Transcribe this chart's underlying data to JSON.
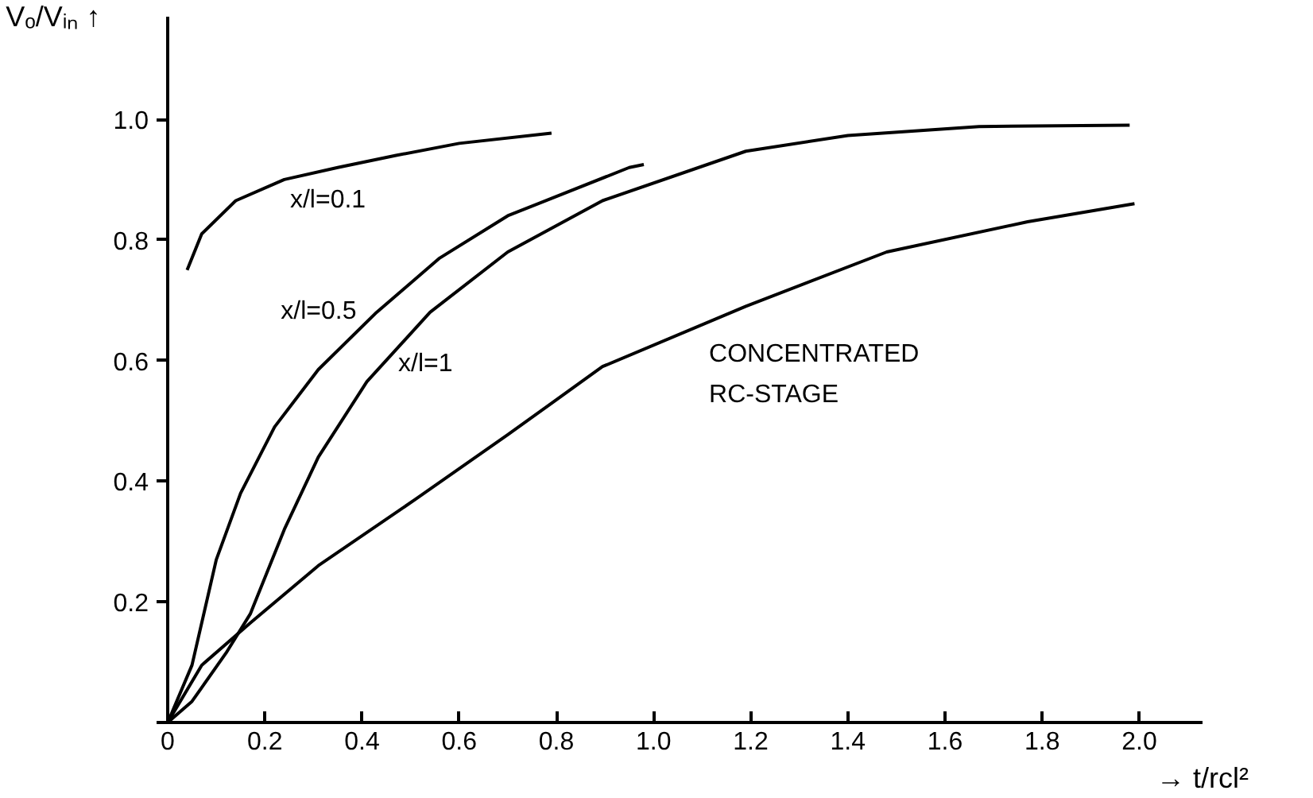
{
  "chart_data": {
    "type": "line",
    "xlabel": "→ t/rcl²",
    "ylabel": "Vₒ/Vᵢₙ ↑",
    "xlim": [
      0,
      2.13
    ],
    "ylim": [
      0,
      1.17
    ],
    "xticks": [
      0,
      0.2,
      0.4,
      0.6,
      0.8,
      {
        "value": 1.0,
        "label": "1.0"
      },
      1.2,
      1.4,
      1.6,
      1.8,
      {
        "value": 2.0,
        "label": "2.0"
      }
    ],
    "yticks": [
      {
        "value": 0,
        "label": null
      },
      0.2,
      0.4,
      0.6,
      0.8,
      {
        "value": 1.0,
        "label": "1.0"
      }
    ],
    "grid": false,
    "marker": "none",
    "line_style": "solid",
    "series": [
      {
        "name": "x/l=0.1",
        "color": "#000000",
        "x": [
          0.04,
          0.07,
          0.14,
          0.24,
          0.35,
          0.47,
          0.6,
          0.79
        ],
        "values": [
          0.75,
          0.81,
          0.865,
          0.9,
          0.92,
          0.94,
          0.96,
          0.977
        ]
      },
      {
        "name": "x/l=0.5",
        "color": "#000000",
        "x": [
          0,
          0.05,
          0.1,
          0.15,
          0.22,
          0.31,
          0.43,
          0.56,
          0.7,
          0.95,
          0.98
        ],
        "values": [
          0,
          0.095,
          0.27,
          0.38,
          0.49,
          0.585,
          0.68,
          0.77,
          0.84,
          0.92,
          0.925
        ]
      },
      {
        "name": "x/l=1",
        "color": "#000000",
        "x": [
          0,
          0.05,
          0.12,
          0.17,
          0.24,
          0.31,
          0.41,
          0.54,
          0.7,
          0.895,
          1.19,
          1.4,
          1.67,
          1.98
        ],
        "values": [
          0,
          0.035,
          0.115,
          0.18,
          0.32,
          0.44,
          0.565,
          0.68,
          0.78,
          0.865,
          0.947,
          0.973,
          0.988,
          0.99
        ]
      },
      {
        "name": "CONCENTRATED\nRC-STAGE",
        "color": "#000000",
        "x": [
          0,
          0.07,
          0.17,
          0.31,
          0.51,
          0.7,
          0.895,
          1.19,
          1.48,
          1.77,
          1.99
        ],
        "values": [
          0,
          0.095,
          0.165,
          0.26,
          0.37,
          0.477,
          0.59,
          0.69,
          0.78,
          0.83,
          0.86
        ]
      }
    ]
  }
}
